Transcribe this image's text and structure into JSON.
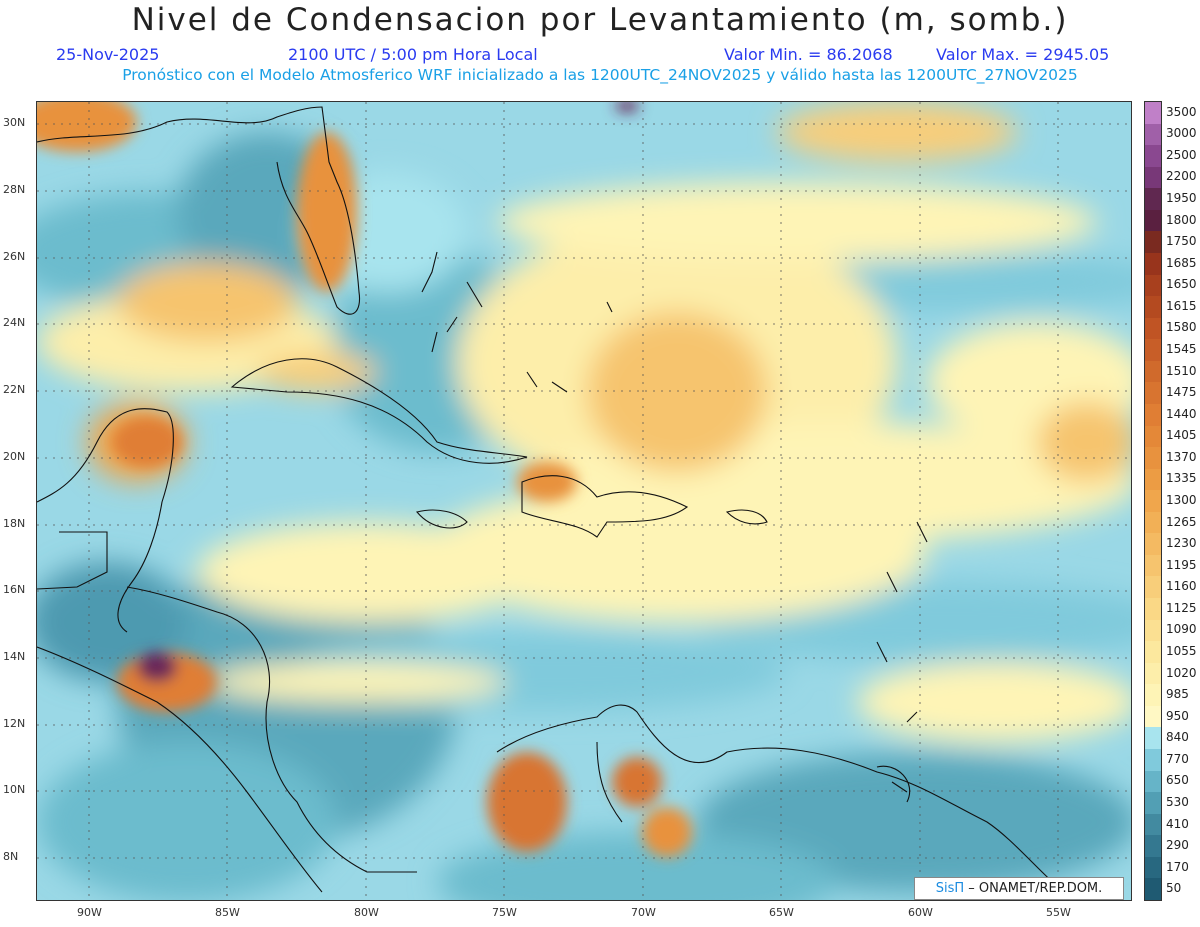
{
  "title": "Nivel de Condensacion por Levantamiento (m, somb.)",
  "date": "25-Nov-2025",
  "time": "2100 UTC / 5:00 pm Hora Local",
  "min_label": "Valor Min. = 86.2068",
  "max_label": "Valor Max. = 2945.05",
  "subtitle": "Pronóstico con el Modelo Atmosferico WRF inicializado a las 1200UTC_24NOV2025 y válido hasta las  1200UTC_27NOV2025",
  "lat_labels": [
    "30N",
    "28N",
    "26N",
    "24N",
    "22N",
    "20N",
    "18N",
    "16N",
    "14N",
    "12N",
    "10N",
    "8N"
  ],
  "lon_labels": [
    "90W",
    "85W",
    "80W",
    "75W",
    "70W",
    "65W",
    "60W",
    "55W"
  ],
  "colorbar": {
    "labels": [
      "3500",
      "3000",
      "2500",
      "2200",
      "1950",
      "1800",
      "1750",
      "1685",
      "1650",
      "1615",
      "1580",
      "1545",
      "1510",
      "1475",
      "1440",
      "1405",
      "1370",
      "1335",
      "1300",
      "1265",
      "1230",
      "1195",
      "1160",
      "1125",
      "1090",
      "1055",
      "1020",
      "985",
      "950",
      "840",
      "770",
      "650",
      "530",
      "410",
      "290",
      "170",
      "50"
    ],
    "colors": [
      "#c080c8",
      "#a060a8",
      "#8a4890",
      "#783878",
      "#602850",
      "#5a2040",
      "#7a2a20",
      "#98341c",
      "#a8401e",
      "#b44a20",
      "#c05424",
      "#c85e28",
      "#d06a2c",
      "#d87430",
      "#e07e34",
      "#e48838",
      "#e8923e",
      "#ec9c44",
      "#f0a64c",
      "#f2b056",
      "#f4ba62",
      "#f6c46e",
      "#f8ce7a",
      "#fad886",
      "#fbe092",
      "#fce89e",
      "#fdeeaa",
      "#fef4b6",
      "#fff8c4",
      "#a8e4ee",
      "#80cadc",
      "#66b4c8",
      "#529fb4",
      "#428aa0",
      "#347890",
      "#286880",
      "#1f5a72"
    ]
  },
  "credit_logo": "SisΠ",
  "credit_text": "– ONAMET/REP.DOM."
}
